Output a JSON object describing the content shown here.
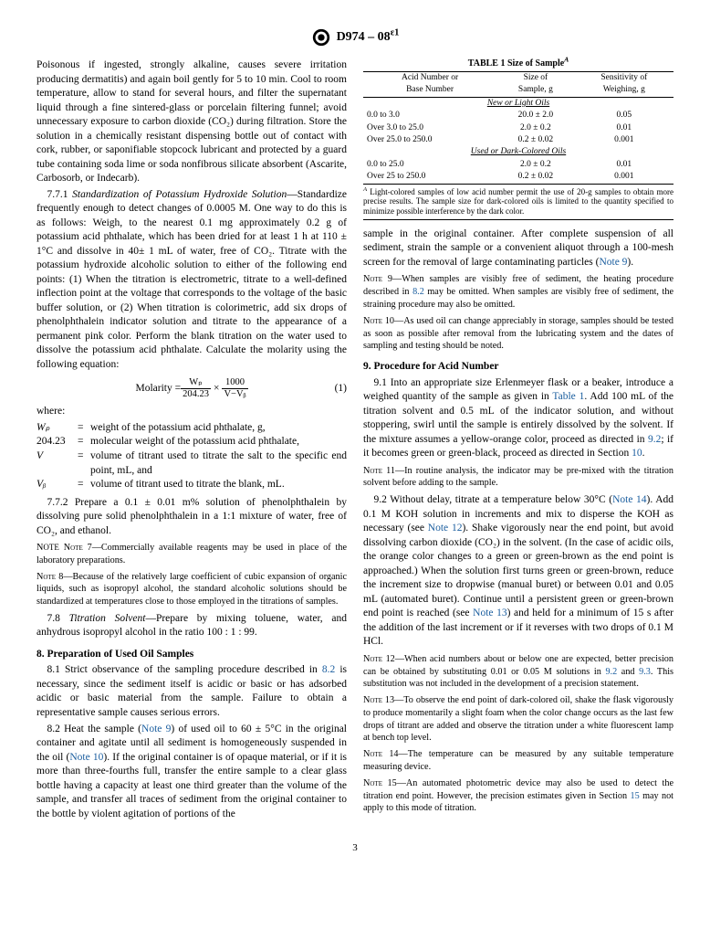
{
  "header": "D974 – 08",
  "header_sup": "ɛ1",
  "page_num": "3",
  "left": {
    "p1": "Poisonous if ingested, strongly alkaline, causes severe irritation producing dermatitis) and again boil gently for 5 to 10 min. Cool to room temperature, allow to stand for several hours, and filter the supernatant liquid through a fine sintered-glass or porcelain filtering funnel; avoid unnecessary exposure to carbon dioxide (CO₂) during filtration. Store the solution in a chemically resistant dispensing bottle out of contact with cork, rubber, or saponifiable stopcock lubricant and protected by a guard tube containing soda lime or soda nonfibrous silicate absorbent (Ascarite, Carbosorb, or Indecarb).",
    "s771_lead": "7.7.1 ",
    "s771_it": "Standardization of Potassium Hydroxide Solution",
    "s771_body": "—Standardize frequently enough to detect changes of 0.0005 M. One way to do this is as follows: Weigh, to the nearest 0.1 mg approximately 0.2 g of potassium acid phthalate, which has been dried for at least 1 h at 110 ± 1°C and dissolve in 40± 1 mL of water, free of CO₂. Titrate with the potassium hydroxide alcoholic solution to either of the following end points: (1) When the titration is electrometric, titrate to a well-defined inflection point at the voltage that corresponds to the voltage of the basic buffer solution, or (2) When titration is colorimetric, add six drops of phenolphthalein indicator solution and titrate to the appearance of a permanent pink color. Perform the blank titration on the water used to dissolve the potassium acid phthalate. Calculate the molarity using the following equation:",
    "eq_label": "Molarity = ",
    "eq_num1": "Wₚ",
    "eq_den1": "204.23",
    "eq_num2": "1000",
    "eq_den2": "V−Vᵦ",
    "eq_ref": "(1)",
    "where": "where:",
    "w_wp": "Wₚ",
    "w_wp_d": "weight of the potassium acid phthalate, g,",
    "w_204": "204.23",
    "w_204_d": "molecular weight of the potassium acid phthalate,",
    "w_v": "V",
    "w_v_d": "volume of titrant used to titrate the salt to the specific end point, mL, and",
    "w_vb": "Vᵦ",
    "w_vb_d": "volume of titrant used to titrate the blank, mL.",
    "s772": "7.7.2 Prepare a 0.1 ± 0.01 m% solution of phenolphthalein by dissolving pure solid phenolphthalein in a 1:1 mixture of water, free of CO₂, and ethanol.",
    "note7": "NOTE 7—Commercially available reagents may be used in place of the laboratory preparations.",
    "note8": "NOTE 8—Because of the relatively large coefficient of cubic expansion of organic liquids, such as isopropyl alcohol, the standard alcoholic solutions should be standardized at temperatures close to those employed in the titrations of samples.",
    "s78_lead": "7.8 ",
    "s78_it": "Titration Solvent",
    "s78_body": "—Prepare by mixing toluene, water, and anhydrous isopropyl alcohol in the ratio 100 : 1 : 99.",
    "h8": "8.  Preparation of Used Oil Samples",
    "s81_a": "8.1 Strict observance of the sampling procedure described in ",
    "s81_link": "8.2",
    "s81_b": " is necessary, since the sediment itself is acidic or basic or has adsorbed acidic or basic material from the sample. Failure to obtain a representative sample causes serious errors.",
    "s82_a": "8.2 Heat the sample (",
    "s82_n9": "Note 9",
    "s82_b": ") of used oil to 60 ± 5°C in the original container and agitate until all sediment is homogeneously suspended in the oil (",
    "s82_n10": "Note 10",
    "s82_c": "). If the original container is of opaque material, or if it is more than three-fourths full, transfer the entire sample to a clear glass bottle having a capacity at least one third greater than the volume of the sample, and transfer all traces of sediment from the original container to the bottle by violent agitation of portions of the"
  },
  "right": {
    "tbl_title": "TABLE 1  Size of Sample",
    "tbl_title_sup": "A",
    "hcol1": "Acid Number or",
    "hcol1b": "Base Number",
    "hcol2": "Size of",
    "hcol2b": "Sample, g",
    "hcol3": "Sensitivity of",
    "hcol3b": "Weighing, g",
    "sec1": "New or Light Oils",
    "r1c1": "0.0 to 3.0",
    "r1c2": "20.0 ± 2.0",
    "r1c3": "0.05",
    "r2c1": "Over 3.0 to 25.0",
    "r2c2": "2.0 ± 0.2",
    "r2c3": "0.01",
    "r3c1": "Over 25.0 to 250.0",
    "r3c2": "0.2 ± 0.02",
    "r3c3": "0.001",
    "sec2": "Used or Dark-Colored Oils",
    "r4c1": "0.0 to 25.0",
    "r4c2": "2.0 ± 0.2",
    "r4c3": "0.01",
    "r5c1": "Over 25 to 250.0",
    "r5c2": "0.2 ± 0.02",
    "r5c3": "0.001",
    "tbl_foot_sup": "A",
    "tbl_foot": " Light-colored samples of low acid number permit the use of 20-g samples to obtain more precise results. The sample size for dark-colored oils is limited to the quantity specified to minimize possible interference by the dark color.",
    "cont_a": "sample in the original container. After complete suspension of all sediment, strain the sample or a convenient aliquot through a 100-mesh screen for the removal of large contaminating particles (",
    "cont_n9": "Note 9",
    "cont_b": ").",
    "note9_a": "NOTE 9—When samples are visibly free of sediment, the heating procedure described in ",
    "note9_link": "8.2",
    "note9_b": " may be omitted. When samples are visibly free of sediment, the straining procedure may also be omitted.",
    "note10": "NOTE 10—As used oil can change appreciably in storage, samples should be tested as soon as possible after removal from the lubricating system and the dates of sampling and testing should be noted.",
    "h9": "9.  Procedure for Acid Number",
    "s91_a": "9.1 Into an appropriate size Erlenmeyer flask or a beaker, introduce a weighed quantity of the sample as given in ",
    "s91_t1": "Table 1",
    "s91_b": ". Add 100 mL of the titration solvent and 0.5 mL of the indicator solution, and without stoppering, swirl until the sample is entirely dissolved by the solvent. If the mixture assumes a yellow-orange color, proceed as directed in ",
    "s91_92": "9.2",
    "s91_c": "; if it becomes green or green-black, proceed as directed in Section ",
    "s91_10": "10",
    "s91_d": ".",
    "note11": "NOTE 11—In routine analysis, the indicator may be pre-mixed with the titration solvent before adding to the sample.",
    "s92_a": "9.2 Without delay, titrate at a temperature below 30°C (",
    "s92_n14a": "Note 14",
    "s92_b": "). Add 0.1 M KOH solution in increments and mix to disperse the KOH as necessary (see ",
    "s92_n12": "Note 12",
    "s92_c": "). Shake vigorously near the end point, but avoid dissolving carbon dioxide (CO₂) in the solvent. (In the case of acidic oils, the orange color changes to a green or green-brown as the end point is approached.) When the solution first turns green or green-brown, reduce the increment size to dropwise (manual buret) or between 0.01 and 0.05 mL (automated buret). Continue until a persistent green or green-brown end point is reached (see ",
    "s92_n13": "Note 13",
    "s92_d": ") and held for a minimum of 15 s after the addition of the last increment or if it reverses with two drops of 0.1 M HCl.",
    "note12_a": "NOTE 12—When acid numbers about or below one are expected, better precision can be obtained by substituting 0.01 or 0.05 M solutions in ",
    "note12_92": "9.2",
    "note12_and": " and ",
    "note12_93": "9.3",
    "note12_b": ". This substitution was not included in the development of a precision statement.",
    "note13": "NOTE 13—To observe the end point of dark-colored oil, shake the flask vigorously to produce momentarily a slight foam when the color change occurs as the last few drops of titrant are added and observe the titration under a white fluorescent lamp at bench top level.",
    "note14": "NOTE 14—The temperature can be measured by any suitable temperature measuring device.",
    "note15_a": "NOTE 15—An automated photometric device may also be used to detect the titration end point. However, the precision estimates given in Section ",
    "note15_15": "15",
    "note15_b": " may not apply to this mode of titration."
  }
}
